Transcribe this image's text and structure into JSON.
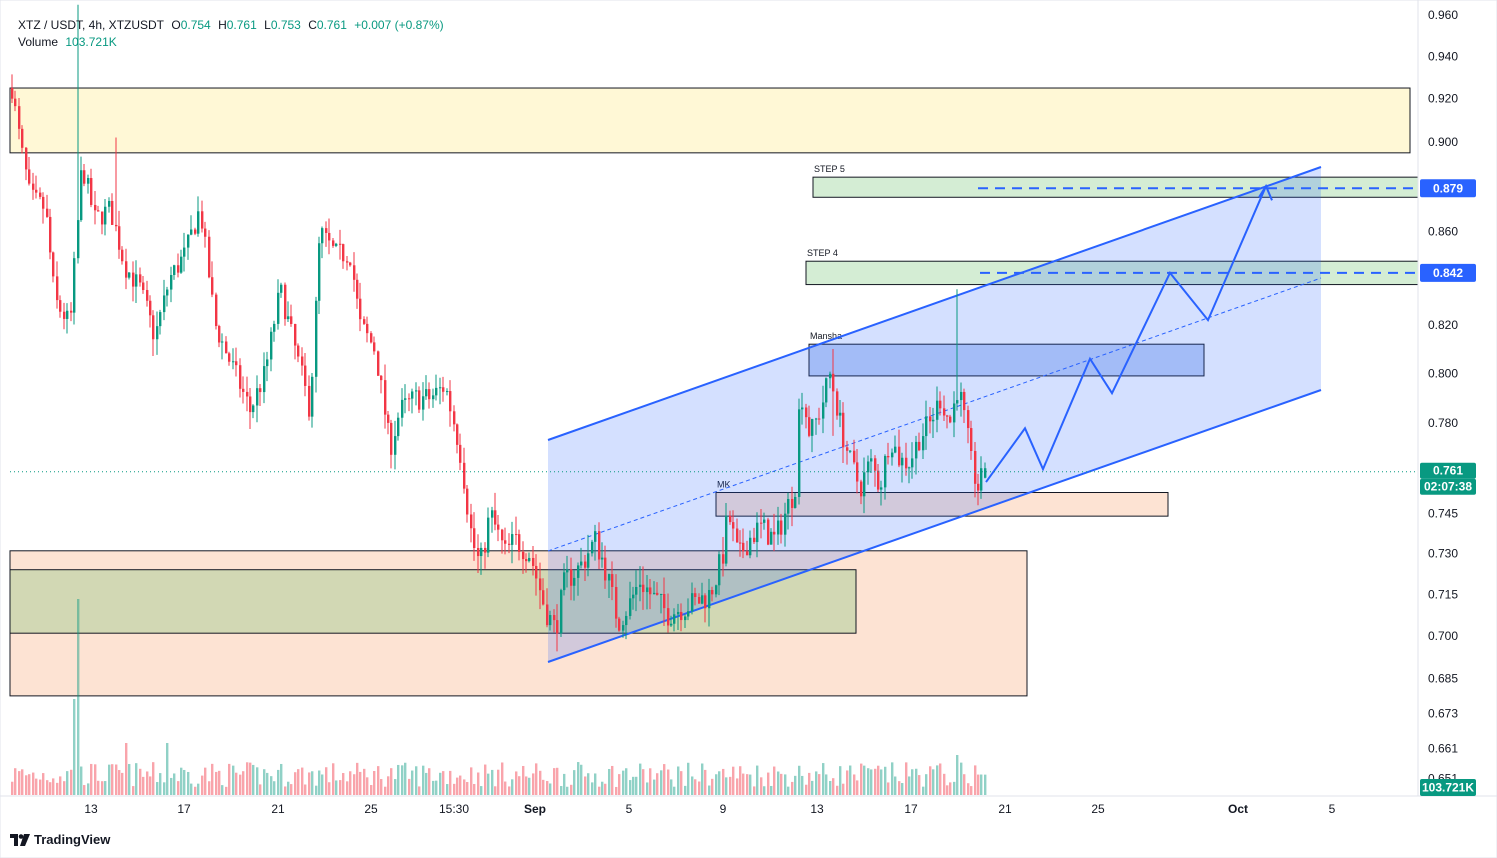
{
  "header": {
    "symbol": "XTZ / USDT, 4h, XTZUSDT",
    "o_label": "O",
    "o": "0.754",
    "h_label": "H",
    "h": "0.761",
    "l_label": "L",
    "l": "0.753",
    "c_label": "C",
    "c": "0.761",
    "change": "+0.007 (+0.87%)",
    "volume_label": "Volume",
    "volume": "103.721K"
  },
  "brand": "TradingView",
  "colors": {
    "up": "#089981",
    "down": "#f23645",
    "channel": "#2962ff",
    "channel_fill": "rgba(41,98,255,0.2)"
  },
  "chart_data": {
    "type": "candlestick",
    "symbol": "XTZUSDT",
    "interval": "4h",
    "y_axis": {
      "ticks": [
        "0.960",
        "0.940",
        "0.920",
        "0.900",
        "0.880",
        "0.860",
        "0.840",
        "0.820",
        "0.800",
        "0.780",
        "0.760",
        "0.745",
        "0.730",
        "0.715",
        "0.700",
        "0.685",
        "0.673",
        "0.661",
        "0.651"
      ],
      "scale": "log"
    },
    "x_axis": {
      "ticks": [
        "13",
        "17",
        "21",
        "25",
        "15:30",
        "Sep",
        "5",
        "9",
        "13",
        "17",
        "21",
        "25",
        "Oct",
        "5"
      ]
    },
    "price_labels": [
      {
        "text": "0.879",
        "kind": "level"
      },
      {
        "text": "0.842",
        "kind": "level"
      },
      {
        "text": "0.761",
        "kind": "last"
      },
      {
        "text": "02:07:38",
        "kind": "countdown"
      },
      {
        "text": "103.721K",
        "kind": "volume"
      }
    ],
    "zones": [
      {
        "label": "",
        "from": 0.895,
        "to": 0.925,
        "color": "#fff8d6"
      },
      {
        "label": "STEP 5",
        "from": 0.875,
        "to": 0.884,
        "color": "#d4edd4"
      },
      {
        "label": "STEP 4",
        "from": 0.837,
        "to": 0.847,
        "color": "#d4edd4"
      },
      {
        "label": "Mansha",
        "from": 0.799,
        "to": 0.812,
        "color": "#c2d3f5"
      },
      {
        "label": "MK",
        "from": 0.744,
        "to": 0.753,
        "color": "#fde3d3"
      },
      {
        "label": "",
        "from": 0.679,
        "to": 0.731,
        "color": "#fde3d3"
      },
      {
        "label": "",
        "from": 0.701,
        "to": 0.724,
        "color": "#d2d8b4"
      }
    ],
    "last_price": 0.761,
    "ohlc_last": {
      "open": 0.754,
      "high": 0.761,
      "low": 0.753,
      "close": 0.761,
      "change": 0.007,
      "change_pct": 0.87
    },
    "volume_last": "103.721K"
  }
}
